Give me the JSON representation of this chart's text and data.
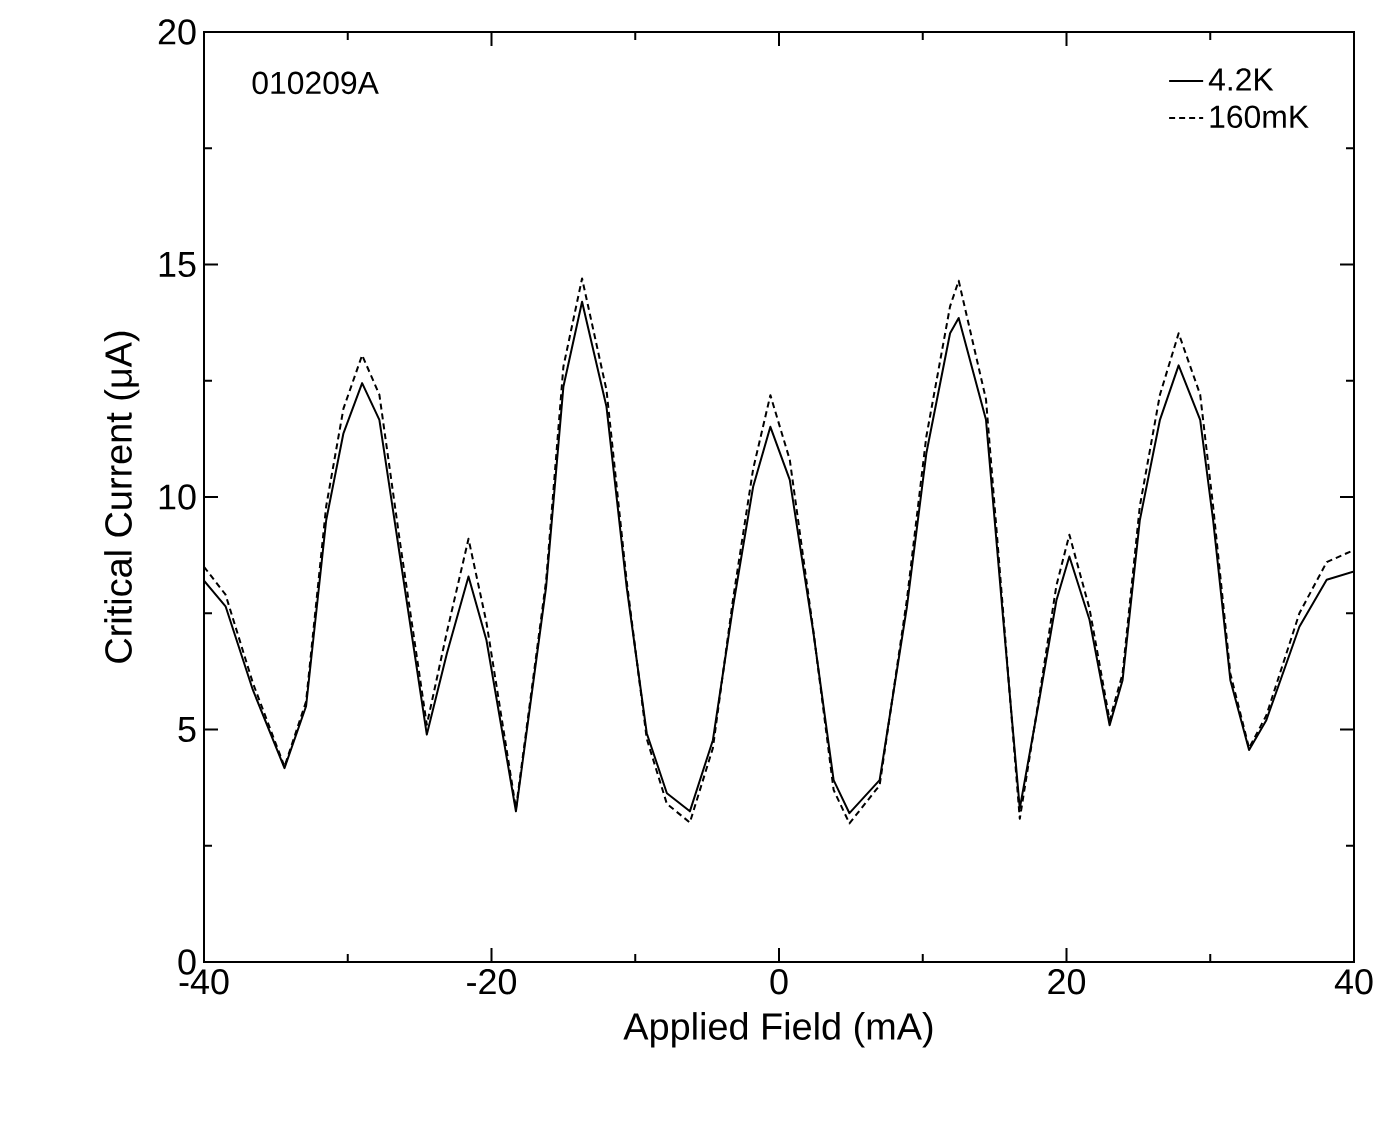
{
  "chart_data": {
    "type": "line",
    "xlabel": "Applied Field (mA)",
    "ylabel": "Critical Current (μA)",
    "annotations": [
      "010209A"
    ],
    "x": [
      -40,
      -38.5,
      -36.6,
      -34.4,
      -32.9,
      -31.5,
      -30.3,
      -29.0,
      -27.8,
      -26.4,
      -24.5,
      -23.1,
      -21.6,
      -20.35,
      -18.3,
      -16.2,
      -15.0,
      -13.7,
      -12.0,
      -10.6,
      -9.2,
      -7.8,
      -6.2,
      -4.6,
      -3.2,
      -1.8,
      -0.6,
      0.75,
      2.4,
      3.8,
      4.9,
      7.0,
      8.9,
      10.25,
      11.9,
      12.5,
      14.4,
      15.6,
      16.75,
      18.1,
      19.3,
      20.2,
      21.6,
      23.0,
      23.9,
      25.1,
      26.5,
      27.8,
      29.3,
      30.2,
      31.4,
      32.7,
      33.9,
      36.2,
      38.1,
      40
    ],
    "series": [
      {
        "name": "4.2K",
        "color": "#000000",
        "line_style": "solid",
        "values": [
          8.2,
          7.65,
          5.85,
          4.17,
          5.5,
          9.5,
          11.37,
          12.45,
          11.66,
          8.79,
          4.89,
          6.64,
          8.29,
          6.92,
          3.24,
          8.07,
          12.37,
          14.2,
          11.94,
          8.07,
          4.92,
          3.63,
          3.24,
          4.77,
          7.64,
          10.22,
          11.51,
          10.37,
          7.07,
          3.91,
          3.2,
          3.91,
          7.64,
          10.94,
          13.52,
          13.85,
          11.66,
          7.36,
          3.3,
          5.63,
          7.78,
          8.72,
          7.36,
          5.09,
          6.06,
          9.5,
          11.66,
          12.83,
          11.66,
          9.5,
          6.06,
          4.56,
          5.2,
          7.21,
          8.22,
          8.4
        ]
      },
      {
        "name": "160mK",
        "color": "#000000",
        "line_style": "dashed",
        "values": [
          8.5,
          7.9,
          6.0,
          4.2,
          5.6,
          9.8,
          11.9,
          13.05,
          12.2,
          9.1,
          5.1,
          7.1,
          9.1,
          7.3,
          3.3,
          8.2,
          12.8,
          14.7,
          12.3,
          8.2,
          4.8,
          3.4,
          3.0,
          4.6,
          7.8,
          10.6,
          12.19,
          10.8,
          7.1,
          3.7,
          2.98,
          3.8,
          7.8,
          11.3,
          14.1,
          14.65,
          12.1,
          7.5,
          3.08,
          5.7,
          8.1,
          9.19,
          7.6,
          5.2,
          6.2,
          9.8,
          12.2,
          13.52,
          12.2,
          9.8,
          6.2,
          4.6,
          5.3,
          7.5,
          8.6,
          8.86
        ]
      }
    ],
    "xlim": [
      -40,
      40
    ],
    "ylim": [
      0,
      20
    ],
    "xticks": [
      -40,
      -20,
      0,
      20,
      40
    ],
    "yticks": [
      0,
      5,
      10,
      15,
      20
    ],
    "grid": false,
    "legend": "top right",
    "marker": "none"
  }
}
